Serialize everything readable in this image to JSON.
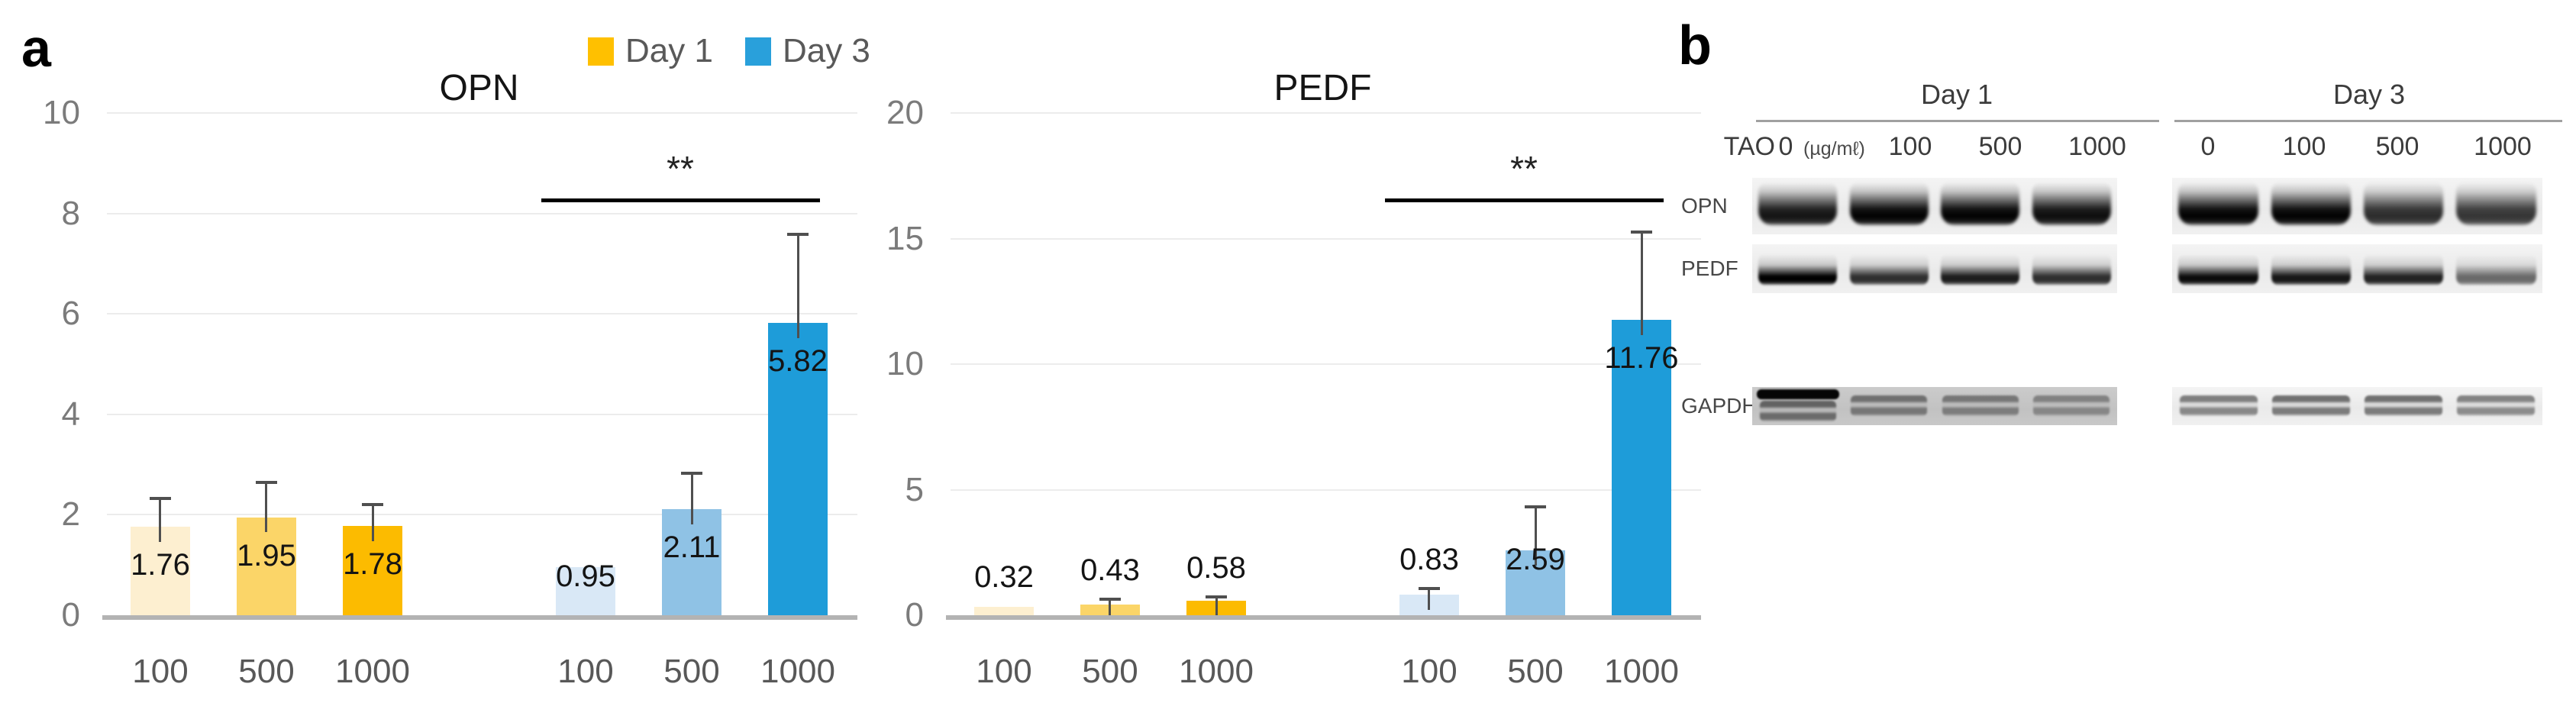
{
  "panel_a": {
    "label": "a",
    "legend": [
      {
        "label": "Day 1",
        "color": "#FFC000"
      },
      {
        "label": "Day 3",
        "color": "#29A0DB"
      }
    ]
  },
  "chart_data": [
    {
      "type": "bar",
      "title": "OPN",
      "categories": [
        "100",
        "500",
        "1000"
      ],
      "ylim": [
        0,
        10
      ],
      "y_ticks": [
        0,
        2,
        4,
        6,
        8,
        10
      ],
      "grid": true,
      "series": [
        {
          "name": "Day 1",
          "values": [
            1.76,
            1.95,
            1.78
          ],
          "errors": [
            0.6,
            0.72,
            0.45
          ],
          "colors": [
            "#FDEFD0",
            "#FBD568",
            "#FCBB00"
          ]
        },
        {
          "name": "Day 3",
          "values": [
            0.95,
            2.11,
            5.82
          ],
          "errors": [
            0,
            0.75,
            1.8
          ],
          "colors": [
            "#D9E8F6",
            "#8FC2E5",
            "#1E9CD9"
          ]
        }
      ],
      "annotation": {
        "label": "**",
        "over_series": "Day 3",
        "y": 8.3
      }
    },
    {
      "type": "bar",
      "title": "PEDF",
      "categories": [
        "100",
        "500",
        "1000"
      ],
      "ylim": [
        0,
        20
      ],
      "y_ticks": [
        0,
        5,
        10,
        15,
        20
      ],
      "grid": true,
      "series": [
        {
          "name": "Day 1",
          "values": [
            0.32,
            0.43,
            0.58
          ],
          "errors": [
            0.12,
            0.26,
            0.2
          ],
          "colors": [
            "#FDEFD0",
            "#FBD568",
            "#FCBB00"
          ]
        },
        {
          "name": "Day 3",
          "values": [
            0.83,
            2.59,
            11.76
          ],
          "errors": [
            0.3,
            1.8,
            3.55
          ],
          "colors": [
            "#D9E8F6",
            "#8FC2E5",
            "#1E9CD9"
          ]
        }
      ],
      "annotation": {
        "label": "**",
        "over_series": "Day 3",
        "y": 16.6
      }
    }
  ],
  "panel_b": {
    "label": "b",
    "tao_label": "TAO",
    "unit_label": "(µg/mℓ)",
    "days": [
      {
        "title": "Day 1",
        "concentrations": [
          "0",
          "100",
          "500",
          "1000"
        ]
      },
      {
        "title": "Day 3",
        "concentrations": [
          "0",
          "100",
          "500",
          "1000"
        ]
      }
    ],
    "rows": [
      {
        "label": "OPN",
        "style": "thick",
        "day1": [
          0.92,
          1,
          1,
          0.95
        ],
        "day3": [
          1,
          1,
          0.82,
          0.78
        ]
      },
      {
        "label": "PEDF",
        "style": "thin",
        "day1": [
          1,
          0.8,
          0.88,
          0.8
        ],
        "day3": [
          0.95,
          0.9,
          0.85,
          0.55
        ]
      },
      {
        "label": "GAPDH",
        "style": "faint",
        "day1": [
          0.9,
          0.78,
          0.72,
          0.62
        ],
        "day3": [
          0.78,
          0.88,
          0.88,
          0.75
        ],
        "day1_dark_bg": true,
        "day1_sharp_lane": 0
      }
    ]
  }
}
